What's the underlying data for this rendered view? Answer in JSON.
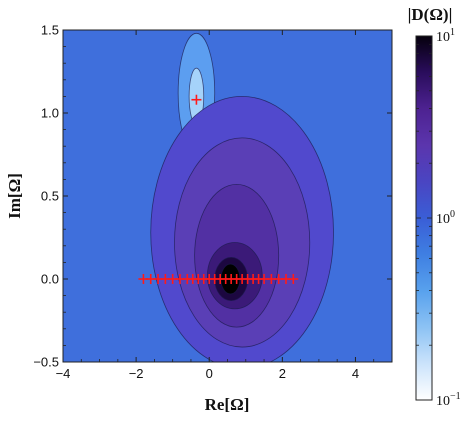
{
  "chart_data": {
    "type": "contour",
    "title": "",
    "xlabel": "Re[Ω]",
    "ylabel": "Im[Ω]",
    "xlim": [
      -4,
      5
    ],
    "ylim": [
      -0.5,
      1.5
    ],
    "x_ticks": [
      -4,
      -2,
      0,
      2,
      4
    ],
    "y_ticks": [
      -0.5,
      0.0,
      0.5,
      1.0,
      1.5
    ],
    "x_tick_labels": [
      "−4",
      "−2",
      "0",
      "2",
      "4"
    ],
    "y_tick_labels": [
      "−0.5",
      "0.0",
      "0.5",
      "1.0",
      "1.5"
    ],
    "colorbar": {
      "title": "|D(Ω)|",
      "scale": "log",
      "range": [
        0.1,
        10
      ],
      "labels": [
        {
          "value": 10,
          "base": "10",
          "exp": "1"
        },
        {
          "value": 1,
          "base": "10",
          "exp": "0"
        },
        {
          "value": 0.1,
          "base": "10",
          "exp": "−1"
        }
      ],
      "colors": [
        "#ffffff",
        "#cbe3fb",
        "#8cc2f4",
        "#58a1ed",
        "#3f7fe2",
        "#3a5ed6",
        "#4a45c2",
        "#5b35ad",
        "#4d2291",
        "#2a0d5c",
        "#05000d"
      ]
    },
    "contour_bands": [
      {
        "level": 0.2,
        "color": "#5c9ef0",
        "regions": [
          {
            "cx": -0.35,
            "cy": 1.12,
            "rx": 0.5,
            "ry": 0.36
          }
        ]
      },
      {
        "level": 0.12,
        "color": "#a5d3fa",
        "regions": [
          {
            "cx": -0.35,
            "cy": 1.1,
            "rx": 0.2,
            "ry": 0.17
          }
        ]
      },
      {
        "level": 0.9,
        "color": "#5149cd",
        "regions": [
          {
            "cx": 0.9,
            "cy": 0.28,
            "rx": 2.5,
            "ry": 0.82
          }
        ]
      },
      {
        "level": 1.7,
        "color": "#5a3fb6",
        "regions": [
          {
            "cx": 0.9,
            "cy": 0.22,
            "rx": 1.85,
            "ry": 0.63
          }
        ]
      },
      {
        "level": 3,
        "color": "#5230a3",
        "regions": [
          {
            "cx": 0.75,
            "cy": 0.14,
            "rx": 1.15,
            "ry": 0.43
          }
        ]
      },
      {
        "level": 5,
        "color": "#3b1a78",
        "regions": [
          {
            "cx": 0.7,
            "cy": 0.02,
            "rx": 0.75,
            "ry": 0.2
          }
        ]
      },
      {
        "level": 8,
        "color": "#1c0740",
        "regions": [
          {
            "cx": 0.6,
            "cy": 0.0,
            "rx": 0.45,
            "ry": 0.13
          }
        ]
      },
      {
        "level": 10,
        "color": "#000000",
        "regions": [
          {
            "cx": 0.58,
            "cy": 0.0,
            "rx": 0.26,
            "ry": 0.09
          }
        ]
      }
    ],
    "background_level": 0.4,
    "background_color": "#3f6fdc",
    "markers": {
      "color": "#ff1a1a",
      "symbol": "+",
      "points": [
        {
          "x": -0.35,
          "y": 1.08
        },
        {
          "x": -1.8,
          "y": 0.0
        },
        {
          "x": -1.6,
          "y": 0.0
        },
        {
          "x": -1.4,
          "y": 0.0
        },
        {
          "x": -1.2,
          "y": 0.0
        },
        {
          "x": -1.0,
          "y": 0.0
        },
        {
          "x": -0.8,
          "y": 0.0
        },
        {
          "x": -0.6,
          "y": 0.0
        },
        {
          "x": -0.45,
          "y": 0.0
        },
        {
          "x": -0.3,
          "y": 0.0
        },
        {
          "x": -0.15,
          "y": 0.0
        },
        {
          "x": 0.0,
          "y": 0.0
        },
        {
          "x": 0.15,
          "y": 0.0
        },
        {
          "x": 0.3,
          "y": 0.0
        },
        {
          "x": 0.45,
          "y": 0.0
        },
        {
          "x": 0.6,
          "y": 0.0
        },
        {
          "x": 0.75,
          "y": 0.0
        },
        {
          "x": 0.9,
          "y": 0.0
        },
        {
          "x": 1.05,
          "y": 0.0
        },
        {
          "x": 1.2,
          "y": 0.0
        },
        {
          "x": 1.35,
          "y": 0.0
        },
        {
          "x": 1.5,
          "y": 0.0
        },
        {
          "x": 1.7,
          "y": 0.0
        },
        {
          "x": 1.9,
          "y": 0.0
        },
        {
          "x": 2.1,
          "y": 0.0
        },
        {
          "x": 2.3,
          "y": 0.0
        }
      ]
    },
    "grid": false,
    "legend": "colorbar-right"
  }
}
